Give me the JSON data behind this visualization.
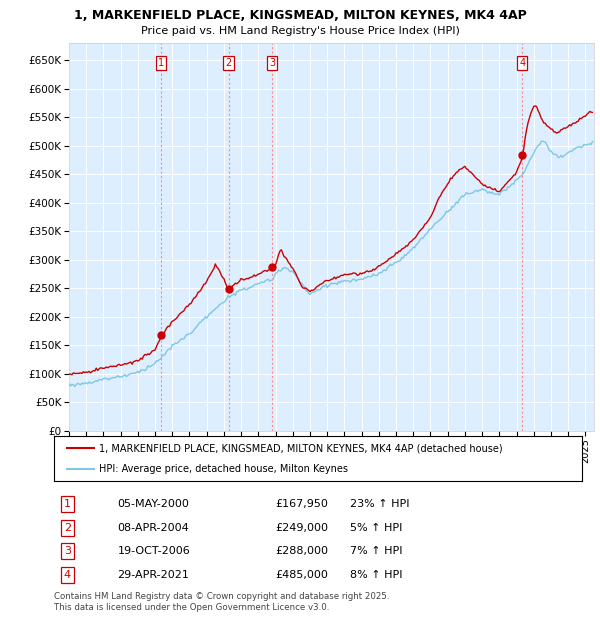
{
  "title": "1, MARKENFIELD PLACE, KINGSMEAD, MILTON KEYNES, MK4 4AP",
  "subtitle": "Price paid vs. HM Land Registry's House Price Index (HPI)",
  "xlim_start": 1995.0,
  "xlim_end": 2025.5,
  "ylim": [
    0,
    680000
  ],
  "yticks": [
    0,
    50000,
    100000,
    150000,
    200000,
    250000,
    300000,
    350000,
    400000,
    450000,
    500000,
    550000,
    600000,
    650000
  ],
  "ytick_labels": [
    "£0",
    "£50K",
    "£100K",
    "£150K",
    "£200K",
    "£250K",
    "£300K",
    "£350K",
    "£400K",
    "£450K",
    "£500K",
    "£550K",
    "£600K",
    "£650K"
  ],
  "sales": [
    {
      "num": 1,
      "date_dec": 2000.35,
      "price": 167950,
      "label": "05-MAY-2000",
      "pct": "23%",
      "dir": "↑"
    },
    {
      "num": 2,
      "date_dec": 2004.27,
      "price": 249000,
      "label": "08-APR-2004",
      "pct": "5%",
      "dir": "↑"
    },
    {
      "num": 3,
      "date_dec": 2006.8,
      "price": 288000,
      "label": "19-OCT-2006",
      "pct": "7%",
      "dir": "↑"
    },
    {
      "num": 4,
      "date_dec": 2021.33,
      "price": 485000,
      "label": "29-APR-2021",
      "pct": "8%",
      "dir": "↑"
    }
  ],
  "legend_line1": "1, MARKENFIELD PLACE, KINGSMEAD, MILTON KEYNES, MK4 4AP (detached house)",
  "legend_line2": "HPI: Average price, detached house, Milton Keynes",
  "footer": "Contains HM Land Registry data © Crown copyright and database right 2025.\nThis data is licensed under the Open Government Licence v3.0.",
  "hpi_color": "#7ec8e3",
  "price_color": "#cc0000",
  "bg_color": "#ddeeff",
  "grid_color": "#ffffff",
  "vline_color": "#ff8888",
  "hpi_anchors_t": [
    1995.0,
    1996.0,
    1997.0,
    1998.0,
    1999.0,
    2000.0,
    2000.35,
    2001.0,
    2002.0,
    2003.0,
    2004.0,
    2004.27,
    2005.0,
    2006.0,
    2006.8,
    2007.0,
    2007.5,
    2008.0,
    2008.5,
    2009.0,
    2009.5,
    2010.0,
    2011.0,
    2012.0,
    2013.0,
    2014.0,
    2015.0,
    2016.0,
    2017.0,
    2018.0,
    2019.0,
    2020.0,
    2021.0,
    2021.33,
    2021.7,
    2022.0,
    2022.3,
    2022.6,
    2023.0,
    2023.5,
    2024.0,
    2024.5,
    2025.25
  ],
  "hpi_anchors_v": [
    80000,
    84000,
    90000,
    96000,
    103000,
    118000,
    127000,
    148000,
    170000,
    200000,
    225000,
    237000,
    245000,
    258000,
    265000,
    275000,
    285000,
    280000,
    258000,
    237000,
    248000,
    255000,
    262000,
    265000,
    275000,
    295000,
    320000,
    355000,
    385000,
    415000,
    425000,
    415000,
    440000,
    449000,
    470000,
    490000,
    505000,
    510000,
    490000,
    480000,
    490000,
    498000,
    505000
  ],
  "price_anchors_t": [
    1995.0,
    1996.0,
    1997.0,
    1998.0,
    1999.0,
    2000.0,
    2000.35,
    2001.0,
    2002.0,
    2003.0,
    2003.5,
    2004.0,
    2004.27,
    2004.6,
    2005.0,
    2005.5,
    2006.0,
    2006.5,
    2006.8,
    2007.0,
    2007.3,
    2007.5,
    2008.0,
    2008.5,
    2009.0,
    2009.5,
    2010.0,
    2011.0,
    2012.0,
    2013.0,
    2014.0,
    2015.0,
    2016.0,
    2016.5,
    2017.0,
    2017.5,
    2018.0,
    2019.0,
    2020.0,
    2021.0,
    2021.33,
    2021.6,
    2021.9,
    2022.1,
    2022.3,
    2022.5,
    2022.7,
    2023.0,
    2023.3,
    2023.6,
    2024.0,
    2024.5,
    2025.0,
    2025.25
  ],
  "price_anchors_v": [
    99000,
    103000,
    110000,
    117000,
    125000,
    145000,
    167950,
    195000,
    225000,
    265000,
    295000,
    270000,
    249000,
    260000,
    268000,
    272000,
    280000,
    285000,
    288000,
    295000,
    325000,
    310000,
    290000,
    258000,
    248000,
    258000,
    268000,
    278000,
    280000,
    292000,
    315000,
    340000,
    380000,
    415000,
    440000,
    460000,
    470000,
    440000,
    425000,
    460000,
    485000,
    540000,
    570000,
    580000,
    565000,
    550000,
    545000,
    535000,
    528000,
    535000,
    540000,
    548000,
    560000,
    565000
  ]
}
